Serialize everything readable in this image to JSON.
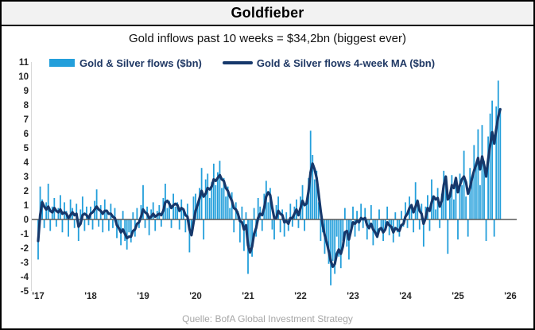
{
  "window": {
    "title": "Goldfieber"
  },
  "chart_data": {
    "type": "bar",
    "title": "Goldfieber",
    "subtitle": "Gold inflows past 10 weeks = $34,2bn (biggest ever)",
    "source": "Quelle: BofA Global Investment Strategy",
    "x_start_year": 2017,
    "points_per_year": 26,
    "x_tick_labels": [
      "'17",
      "'18",
      "'19",
      "'20",
      "'21",
      "'22",
      "'23",
      "'24",
      "'25",
      "'26"
    ],
    "y_ticks": [
      11,
      10,
      9,
      8,
      7,
      6,
      5,
      4,
      3,
      2,
      1,
      0,
      -1,
      -2,
      -3,
      -4,
      -5
    ],
    "ylim": [
      -5,
      11
    ],
    "grid": false,
    "legend_position": "top",
    "zero_line_color": "#595959",
    "axis_line_color": "#d9d9d9",
    "tick_label_color": "#262626",
    "series": [
      {
        "name": "Gold & Silver flows ($bn)",
        "type": "bar",
        "color": "#239fdb",
        "values": [
          -2.8,
          2.3,
          1.4,
          -0.6,
          1.2,
          2.5,
          -0.8,
          0.9,
          1.5,
          -0.5,
          0.8,
          1.7,
          -0.9,
          1.2,
          0.6,
          -1.2,
          1.4,
          0.8,
          -0.6,
          1.1,
          -1.5,
          0.7,
          1.6,
          -0.8,
          0.9,
          -0.4,
          0.9,
          -0.7,
          1.3,
          2.1,
          -0.5,
          1.0,
          -0.9,
          1.4,
          0.7,
          -0.8,
          1.1,
          -0.6,
          0.8,
          -1.3,
          -0.5,
          -1.8,
          0.6,
          -1.5,
          -2.1,
          -0.9,
          -1.6,
          0.5,
          -1.2,
          0.8,
          -0.6,
          1.0,
          2.4,
          -0.6,
          0.9,
          -1.1,
          0.7,
          1.2,
          -0.8,
          0.6,
          1.0,
          -0.5,
          1.5,
          2.5,
          0.8,
          1.3,
          -0.6,
          1.8,
          0.9,
          1.2,
          -0.7,
          1.4,
          0.8,
          -0.9,
          1.1,
          -2.3,
          -1.0,
          1.6,
          1.8,
          0.9,
          2.2,
          3.6,
          -1.4,
          2.8,
          3.2,
          1.5,
          2.6,
          3.9,
          2.4,
          3.3,
          4.1,
          2.2,
          2.9,
          1.6,
          2.3,
          0.8,
          1.9,
          -0.9,
          1.2,
          0.6,
          -1.6,
          0.9,
          -2.2,
          0.5,
          -3.8,
          -1.9,
          -2.6,
          0.8,
          -1.2,
          1.5,
          0.9,
          -0.8,
          1.8,
          2.7,
          1.2,
          2.2,
          -0.7,
          -1.4,
          1.0,
          1.6,
          -0.9,
          0.7,
          -1.2,
          0.5,
          -0.8,
          1.1,
          -0.5,
          0.9,
          1.4,
          -0.6,
          1.6,
          2.4,
          -0.8,
          1.2,
          2.9,
          6.2,
          4.5,
          2.8,
          3.4,
          1.2,
          -1.5,
          -0.9,
          -2.4,
          -1.8,
          -3.1,
          -4.6,
          -2.9,
          -3.8,
          -1.2,
          -2.6,
          -3.4,
          -1.5,
          0.8,
          -1.9,
          -2.8,
          -0.7,
          0.9,
          -1.2,
          0.6,
          -0.8,
          1.1,
          -0.6,
          0.8,
          -1.4,
          -0.7,
          1.0,
          -1.8,
          -0.9,
          -1.3,
          0.7,
          -0.8,
          -1.5,
          -0.6,
          0.9,
          -1.1,
          -0.4,
          -1.6,
          0.5,
          -0.9,
          -1.2,
          0.6,
          -0.5,
          1.2,
          -0.6,
          1.6,
          0.8,
          -0.9,
          2.6,
          1.4,
          -0.7,
          1.1,
          -1.9,
          0.9,
          1.7,
          -0.8,
          2.8,
          1.5,
          0.7,
          2.2,
          -0.6,
          1.8,
          3.4,
          2.6,
          -2.4,
          1.9,
          3.1,
          1.4,
          2.8,
          -1.4,
          3.2,
          2.4,
          4.8,
          1.6,
          -1.2,
          3.6,
          2.8,
          5.2,
          3.9,
          6.3,
          2.4,
          6.6,
          4.1,
          -1.5,
          5.8,
          7.4,
          8.3,
          -1.2,
          7.9,
          9.7,
          7.6
        ]
      },
      {
        "name": "Gold & Silver flows 4-week MA ($bn)",
        "type": "line",
        "color": "#16386b",
        "values": [
          -1.5,
          0.3,
          1.2,
          0.9,
          0.7,
          0.9,
          0.6,
          0.5,
          0.8,
          0.6,
          0.5,
          0.7,
          0.4,
          0.5,
          0.4,
          0.1,
          0.3,
          0.5,
          0.3,
          0.4,
          -0.5,
          -0.3,
          0.3,
          0.4,
          0.3,
          0.1,
          0.4,
          0.5,
          0.7,
          0.9,
          0.7,
          0.6,
          0.4,
          0.6,
          0.6,
          0.4,
          0.4,
          0.2,
          0.1,
          -0.4,
          -0.6,
          -0.9,
          -0.7,
          -1.0,
          -1.3,
          -1.2,
          -1.2,
          -0.8,
          -0.7,
          -0.3,
          -0.2,
          0.2,
          0.7,
          0.5,
          0.4,
          0.1,
          0.2,
          0.4,
          0.2,
          0.3,
          0.4,
          0.3,
          0.6,
          1.2,
          1.3,
          1.1,
          0.8,
          1.0,
          1.1,
          1.0,
          0.6,
          0.8,
          0.7,
          0.3,
          0.2,
          -0.7,
          -1.1,
          -0.2,
          0.6,
          1.0,
          1.5,
          2.0,
          1.6,
          1.8,
          2.2,
          2.1,
          2.3,
          2.8,
          2.7,
          2.9,
          3.1,
          2.8,
          2.7,
          2.2,
          2.0,
          1.6,
          1.3,
          0.8,
          0.7,
          0.4,
          -0.1,
          -0.2,
          -0.7,
          -0.4,
          -1.8,
          -2.3,
          -1.9,
          -1.0,
          -0.6,
          0.1,
          0.4,
          0.3,
          0.8,
          1.6,
          1.9,
          1.7,
          0.8,
          0.1,
          0.1,
          0.6,
          0.4,
          0.3,
          -0.2,
          -0.1,
          -0.3,
          0.1,
          0.1,
          0.4,
          0.7,
          0.3,
          0.8,
          1.3,
          1.0,
          1.1,
          2.0,
          3.3,
          3.9,
          3.5,
          2.9,
          1.8,
          0.6,
          -0.4,
          -1.1,
          -1.6,
          -2.2,
          -2.9,
          -3.3,
          -3.1,
          -2.4,
          -2.1,
          -2.4,
          -1.9,
          -0.9,
          -0.8,
          -1.4,
          -0.8,
          -0.2,
          -0.3,
          -0.1,
          -0.2,
          0.1,
          0.0,
          0.1,
          -0.4,
          -0.6,
          -0.3,
          -0.7,
          -0.9,
          -1.2,
          -0.7,
          -0.6,
          -0.9,
          -0.7,
          -0.2,
          -0.4,
          -0.5,
          -0.9,
          -0.6,
          -0.7,
          -0.8,
          -0.4,
          -0.3,
          0.2,
          0.4,
          0.8,
          1.0,
          0.5,
          0.9,
          1.3,
          0.6,
          0.4,
          -0.3,
          0.1,
          0.8,
          0.6,
          1.2,
          1.6,
          1.4,
          1.5,
          0.9,
          1.3,
          2.4,
          3.0,
          1.4,
          1.6,
          2.4,
          2.2,
          2.9,
          1.9,
          2.4,
          2.8,
          3.0,
          2.6,
          1.8,
          2.2,
          2.9,
          3.4,
          3.8,
          4.3,
          3.5,
          4.4,
          3.8,
          3.0,
          4.2,
          5.2,
          6.1,
          5.3,
          6.3,
          7.2,
          7.7
        ]
      }
    ]
  }
}
